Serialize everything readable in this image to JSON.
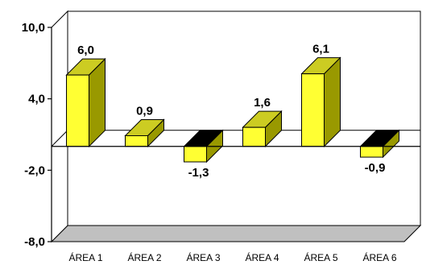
{
  "chart_data": {
    "type": "bar",
    "title": "",
    "xlabel": "",
    "ylabel": "",
    "categories": [
      "ÁREA 1",
      "ÁREA 2",
      "ÁREA 3",
      "ÁREA 4",
      "ÁREA 5",
      "ÁREA 6"
    ],
    "values": [
      6.0,
      0.9,
      -1.3,
      1.6,
      6.1,
      -0.9
    ],
    "data_labels": [
      "6,0",
      "0,9",
      "-1,3",
      "1,6",
      "6,1",
      "-0,9"
    ],
    "ylim": [
      -8.0,
      10.0
    ],
    "yticks": [
      10.0,
      4.0,
      -2.0,
      -8.0
    ],
    "ytick_labels": [
      "10,0",
      "4,0",
      "-2,0",
      "-8,0"
    ],
    "grid": false,
    "legend": "none",
    "style": "3d",
    "colors": {
      "bar_front": "#ffff33",
      "bar_side": "#999900",
      "bar_top_positive": "#cccc22",
      "bar_top_negative": "#000000",
      "floor": "#c0c0c0"
    }
  }
}
